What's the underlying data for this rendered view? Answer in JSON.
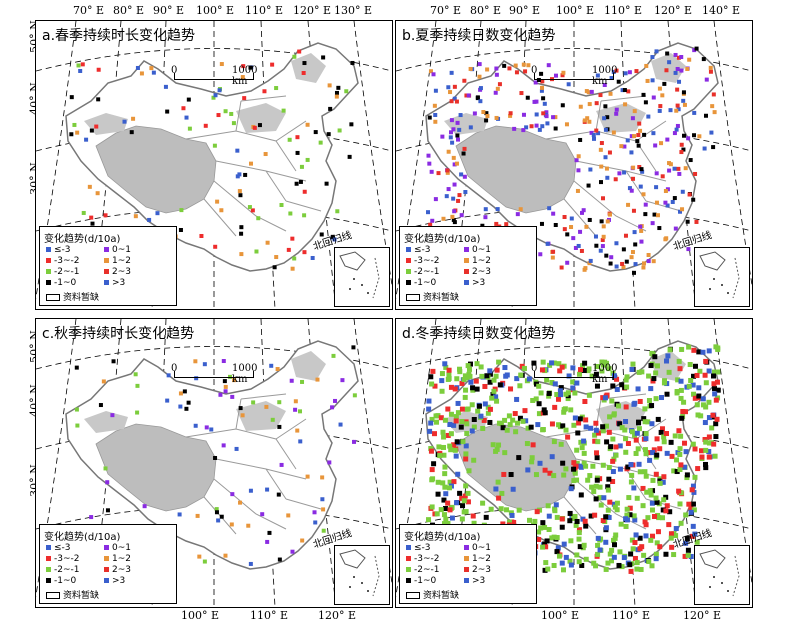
{
  "top_lon_labels": [
    "70° E",
    "80° E",
    "90° E",
    "100° E",
    "110° E",
    "120° E",
    "130° E",
    "140° E"
  ],
  "bottom_lon_labels": [
    "100° E",
    "110° E",
    "120° E"
  ],
  "lat_labels": [
    "50° N",
    "40° N",
    "30° N"
  ],
  "scale": {
    "zero": "0",
    "dist": "1000 km"
  },
  "tropic_label": "北回归线",
  "legend": {
    "title": "变化趋势(d/10a)",
    "items": [
      {
        "label": "≤-3",
        "color": "#3a5fcd"
      },
      {
        "label": "0~1",
        "color": "#8a2be2"
      },
      {
        "label": "-3~-2",
        "color": "#ee2c2c"
      },
      {
        "label": "1~2",
        "color": "#e8953a"
      },
      {
        "label": "-2~-1",
        "color": "#7ccd3c"
      },
      {
        "label": "2~3",
        "color": "#e8302a"
      },
      {
        "label": "-1~0",
        "color": "#000000"
      },
      {
        "label": ">3",
        "color": "#3a5fcd"
      }
    ],
    "missing": "资料暂缺"
  },
  "panels": [
    {
      "id": "a",
      "title": "a.春季持续时长变化趋势"
    },
    {
      "id": "b",
      "title": "b.夏季持续日数变化趋势"
    },
    {
      "id": "c",
      "title": "c.秋季持续时长变化趋势"
    },
    {
      "id": "d",
      "title": "d.冬季持续日数变化趋势"
    }
  ]
}
